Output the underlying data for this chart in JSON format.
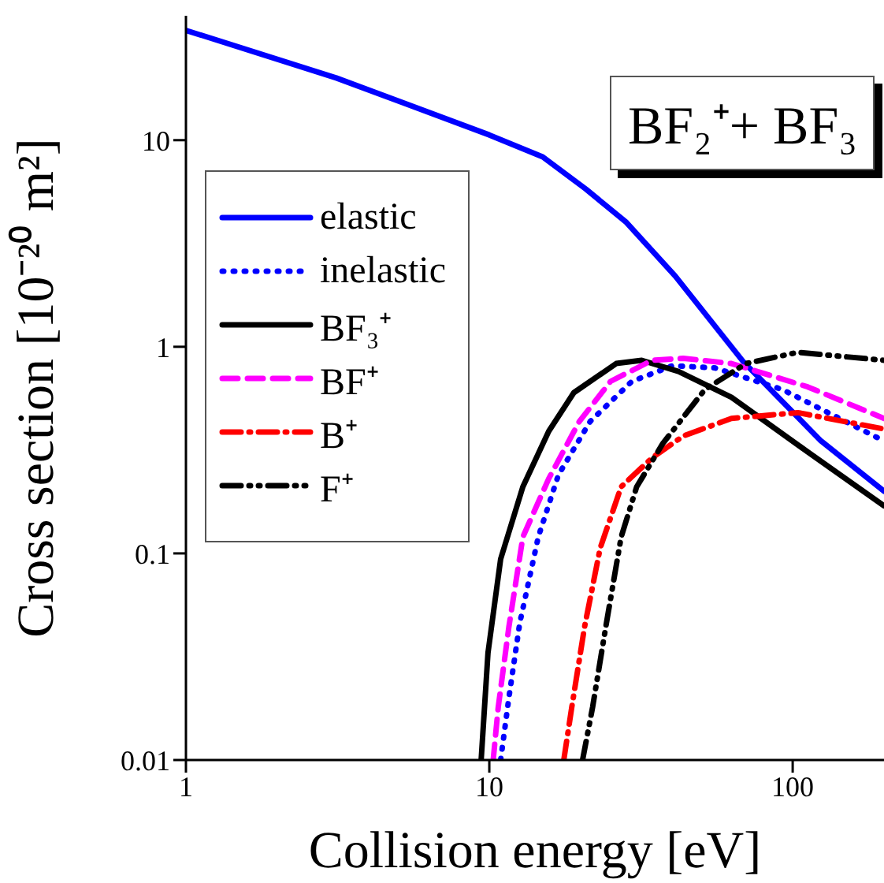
{
  "chart_data": {
    "type": "line",
    "title": "BF₂⁺+ BF₃",
    "xlabel": "Collision energy [eV]",
    "ylabel": "Cross section [10⁻²⁰ m²]",
    "log": "xy",
    "xlim": [
      1,
      200
    ],
    "xticks": [
      1,
      10,
      100
    ],
    "ylim": [
      0.01,
      40
    ],
    "yticks": [
      0.01,
      0.1,
      1,
      10
    ],
    "grid": false,
    "legend": "left",
    "marker": "none",
    "series": [
      {
        "name": "elastic",
        "color": "#0000ff",
        "line_style": "solid",
        "x": [
          1,
          3.13,
          10,
          15,
          20.8,
          28.3,
          41,
          68.6,
          124,
          200
        ],
        "values": [
          34,
          20,
          10.6,
          8.3,
          5.8,
          4.0,
          2.2,
          0.85,
          0.35,
          0.2
        ]
      },
      {
        "name": "inelastic",
        "color": "#0000ff",
        "line_style": "dotted",
        "x": [
          10.9,
          11.6,
          12.6,
          14.5,
          16.9,
          21.5,
          29.5,
          40.2,
          55.5,
          92.7,
          200
        ],
        "values": [
          0.01,
          0.02,
          0.046,
          0.12,
          0.24,
          0.435,
          0.68,
          0.81,
          0.79,
          0.62,
          0.35
        ]
      },
      {
        "name": "BF₃⁺",
        "color": "#000000",
        "line_style": "solid",
        "x": [
          9.4,
          9.9,
          10.9,
          12.9,
          15.7,
          19,
          26.2,
          31.8,
          42,
          62.8,
          112,
          200
        ],
        "values": [
          0.01,
          0.033,
          0.094,
          0.21,
          0.39,
          0.6,
          0.83,
          0.86,
          0.76,
          0.57,
          0.31,
          0.17
        ]
      },
      {
        "name": "BF⁺",
        "color": "#ff00ff",
        "line_style": "dashed",
        "x": [
          10.3,
          10.7,
          11.6,
          12.9,
          15.7,
          19.8,
          25.1,
          34.4,
          43.6,
          62.8,
          112,
          200
        ],
        "values": [
          0.01,
          0.018,
          0.044,
          0.12,
          0.23,
          0.435,
          0.68,
          0.86,
          0.88,
          0.83,
          0.64,
          0.45
        ]
      },
      {
        "name": "B⁺",
        "color": "#ff0000",
        "line_style": "dashdot",
        "x": [
          17.6,
          18.7,
          20.6,
          23.2,
          27.2,
          34.4,
          43.6,
          62.8,
          104,
          200
        ],
        "values": [
          0.01,
          0.018,
          0.044,
          0.106,
          0.21,
          0.29,
          0.37,
          0.45,
          0.48,
          0.4
        ]
      },
      {
        "name": "F⁺",
        "color": "#000000",
        "line_style": "dashdotdot",
        "x": [
          20.3,
          21.9,
          24.2,
          27.2,
          30.6,
          37.3,
          51.3,
          70.2,
          104,
          200
        ],
        "values": [
          0.01,
          0.018,
          0.044,
          0.12,
          0.21,
          0.34,
          0.62,
          0.83,
          0.94,
          0.86
        ]
      }
    ]
  }
}
